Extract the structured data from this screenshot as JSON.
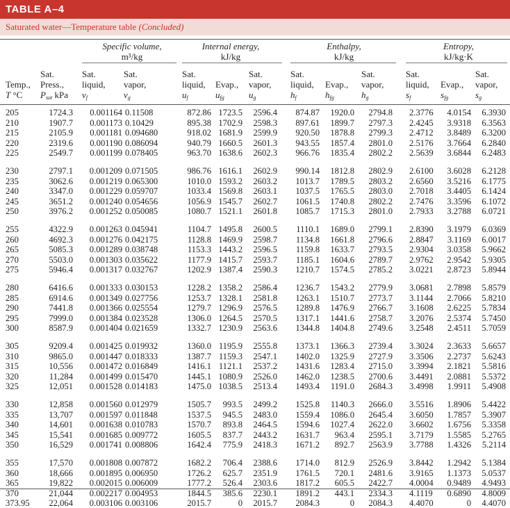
{
  "title": "TABLE A–4",
  "caption": {
    "text": "Saturated water—Temperature table ",
    "note": "(Concluded)"
  },
  "groups": [
    {
      "name": "Specific volume,",
      "unit": "m³/kg"
    },
    {
      "name": "Internal energy,",
      "unit": "kJ/kg"
    },
    {
      "name": "Enthalpy,",
      "unit": "kJ/kg"
    },
    {
      "name": "Entropy,",
      "unit": "kJ/kg·K"
    }
  ],
  "columns": [
    {
      "l1": "",
      "l2": "Temp.,",
      "l3": "T °C",
      "sym": ""
    },
    {
      "l1": "Sat.",
      "l2": "Press.,",
      "l3": "P",
      "sym": ""
    },
    {
      "l1": "Sat.",
      "l2": "liquid,",
      "l3": "",
      "sym": "v_f"
    },
    {
      "l1": "Sat.",
      "l2": "vapor,",
      "l3": "",
      "sym": "v_g"
    },
    {
      "l1": "Sat.",
      "l2": "liquid,",
      "l3": "",
      "sym": "u_f"
    },
    {
      "l1": "",
      "l2": "Evap.,",
      "l3": "",
      "sym": "u_fg"
    },
    {
      "l1": "Sat.",
      "l2": "vapor,",
      "l3": "",
      "sym": "u_g"
    },
    {
      "l1": "Sat.",
      "l2": "liquid,",
      "l3": "",
      "sym": "h_f"
    },
    {
      "l1": "",
      "l2": "Evap.,",
      "l3": "",
      "sym": "h_fg"
    },
    {
      "l1": "Sat.",
      "l2": "vapor,",
      "l3": "",
      "sym": "h_g"
    },
    {
      "l1": "Sat.",
      "l2": "liquid,",
      "l3": "",
      "sym": "s_f"
    },
    {
      "l1": "",
      "l2": "Evap.,",
      "l3": "",
      "sym": "s_fg"
    },
    {
      "l1": "Sat.",
      "l2": "vapor,",
      "l3": "",
      "sym": "s_g"
    }
  ],
  "press_sub": "sat",
  "press_unit": " kPa",
  "rows": [
    [
      "205",
      "1724.3",
      "0.001164",
      "0.11508",
      "872.86",
      "1723.5",
      "2596.4",
      "874.87",
      "1920.0",
      "2794.8",
      "2.3776",
      "4.0154",
      "6.3930"
    ],
    [
      "210",
      "1907.7",
      "0.001173",
      "0.10429",
      "895.38",
      "1702.9",
      "2598.3",
      "897.61",
      "1899.7",
      "2797.3",
      "2.4245",
      "3.9318",
      "6.3563"
    ],
    [
      "215",
      "2105.9",
      "0.001181",
      "0.094680",
      "918.02",
      "1681.9",
      "2599.9",
      "920.50",
      "1878.8",
      "2799.3",
      "2.4712",
      "3.8489",
      "6.3200"
    ],
    [
      "220",
      "2319.6",
      "0.001190",
      "0.086094",
      "940.79",
      "1660.5",
      "2601.3",
      "943.55",
      "1857.4",
      "2801.0",
      "2.5176",
      "3.7664",
      "6.2840"
    ],
    [
      "225",
      "2549.7",
      "0.001199",
      "0.078405",
      "963.70",
      "1638.6",
      "2602.3",
      "966.76",
      "1835.4",
      "2802.2",
      "2.5639",
      "3.6844",
      "6.2483"
    ],
    [
      "230",
      "2797.1",
      "0.001209",
      "0.071505",
      "986.76",
      "1616.1",
      "2602.9",
      "990.14",
      "1812.8",
      "2802.9",
      "2.6100",
      "3.6028",
      "6.2128"
    ],
    [
      "235",
      "3062.6",
      "0.001219",
      "0.065300",
      "1010.0",
      "1593.2",
      "2603.2",
      "1013.7",
      "1789.5",
      "2803.2",
      "2.6560",
      "3.5216",
      "6.1775"
    ],
    [
      "240",
      "3347.0",
      "0.001229",
      "0.059707",
      "1033.4",
      "1569.8",
      "2603.1",
      "1037.5",
      "1765.5",
      "2803.0",
      "2.7018",
      "3.4405",
      "6.1424"
    ],
    [
      "245",
      "3651.2",
      "0.001240",
      "0.054656",
      "1056.9",
      "1545.7",
      "2602.7",
      "1061.5",
      "1740.8",
      "2802.2",
      "2.7476",
      "3.3596",
      "6.1072"
    ],
    [
      "250",
      "3976.2",
      "0.001252",
      "0.050085",
      "1080.7",
      "1521.1",
      "2601.8",
      "1085.7",
      "1715.3",
      "2801.0",
      "2.7933",
      "3.2788",
      "6.0721"
    ],
    [
      "255",
      "4322.9",
      "0.001263",
      "0.045941",
      "1104.7",
      "1495.8",
      "2600.5",
      "1110.1",
      "1689.0",
      "2799.1",
      "2.8390",
      "3.1979",
      "6.0369"
    ],
    [
      "260",
      "4692.3",
      "0.001276",
      "0.042175",
      "1128.8",
      "1469.9",
      "2598.7",
      "1134.8",
      "1661.8",
      "2796.6",
      "2.8847",
      "3.1169",
      "6.0017"
    ],
    [
      "265",
      "5085.3",
      "0.001289",
      "0.038748",
      "1153.3",
      "1443.2",
      "2596.5",
      "1159.8",
      "1633.7",
      "2793.5",
      "2.9304",
      "3.0358",
      "5.9662"
    ],
    [
      "270",
      "5503.0",
      "0.001303",
      "0.035622",
      "1177.9",
      "1415.7",
      "2593.7",
      "1185.1",
      "1604.6",
      "2789.7",
      "2.9762",
      "2.9542",
      "5.9305"
    ],
    [
      "275",
      "5946.4",
      "0.001317",
      "0.032767",
      "1202.9",
      "1387.4",
      "2590.3",
      "1210.7",
      "1574.5",
      "2785.2",
      "3.0221",
      "2.8723",
      "5.8944"
    ],
    [
      "280",
      "6416.6",
      "0.001333",
      "0.030153",
      "1228.2",
      "1358.2",
      "2586.4",
      "1236.7",
      "1543.2",
      "2779.9",
      "3.0681",
      "2.7898",
      "5.8579"
    ],
    [
      "285",
      "6914.6",
      "0.001349",
      "0.027756",
      "1253.7",
      "1328.1",
      "2581.8",
      "1263.1",
      "1510.7",
      "2773.7",
      "3.1144",
      "2.7066",
      "5.8210"
    ],
    [
      "290",
      "7441.8",
      "0.001366",
      "0.025554",
      "1279.7",
      "1296.9",
      "2576.5",
      "1289.8",
      "1476.9",
      "2766.7",
      "3.1608",
      "2.6225",
      "5.7834"
    ],
    [
      "295",
      "7999.0",
      "0.001384",
      "0.023528",
      "1306.0",
      "1264.5",
      "2570.5",
      "1317.1",
      "1441.6",
      "2758.7",
      "3.2076",
      "2.5374",
      "5.7450"
    ],
    [
      "300",
      "8587.9",
      "0.001404",
      "0.021659",
      "1332.7",
      "1230.9",
      "2563.6",
      "1344.8",
      "1404.8",
      "2749.6",
      "3.2548",
      "2.4511",
      "5.7059"
    ],
    [
      "305",
      "9209.4",
      "0.001425",
      "0.019932",
      "1360.0",
      "1195.9",
      "2555.8",
      "1373.1",
      "1366.3",
      "2739.4",
      "3.3024",
      "2.3633",
      "5.6657"
    ],
    [
      "310",
      "9865.0",
      "0.001447",
      "0.018333",
      "1387.7",
      "1159.3",
      "2547.1",
      "1402.0",
      "1325.9",
      "2727.9",
      "3.3506",
      "2.2737",
      "5.6243"
    ],
    [
      "315",
      "10,556",
      "0.001472",
      "0.016849",
      "1416.1",
      "1121.1",
      "2537.2",
      "1431.6",
      "1283.4",
      "2715.0",
      "3.3994",
      "2.1821",
      "5.5816"
    ],
    [
      "320",
      "11,284",
      "0.001499",
      "0.015470",
      "1445.1",
      "1080.9",
      "2526.0",
      "1462.0",
      "1238.5",
      "2700.6",
      "3.4491",
      "2.0881",
      "5.5372"
    ],
    [
      "325",
      "12,051",
      "0.001528",
      "0.014183",
      "1475.0",
      "1038.5",
      "2513.4",
      "1493.4",
      "1191.0",
      "2684.3",
      "3.4998",
      "1.9911",
      "5.4908"
    ],
    [
      "330",
      "12,858",
      "0.001560",
      "0.012979",
      "1505.7",
      "993.5",
      "2499.2",
      "1525.8",
      "1140.3",
      "2666.0",
      "3.5516",
      "1.8906",
      "5.4422"
    ],
    [
      "335",
      "13,707",
      "0.001597",
      "0.011848",
      "1537.5",
      "945.5",
      "2483.0",
      "1559.4",
      "1086.0",
      "2645.4",
      "3.6050",
      "1.7857",
      "5.3907"
    ],
    [
      "340",
      "14,601",
      "0.001638",
      "0.010783",
      "1570.7",
      "893.8",
      "2464.5",
      "1594.6",
      "1027.4",
      "2622.0",
      "3.6602",
      "1.6756",
      "5.3358"
    ],
    [
      "345",
      "15,541",
      "0.001685",
      "0.009772",
      "1605.5",
      "837.7",
      "2443.2",
      "1631.7",
      "963.4",
      "2595.1",
      "3.7179",
      "1.5585",
      "5.2765"
    ],
    [
      "350",
      "16,529",
      "0.001741",
      "0.008806",
      "1642.4",
      "775.9",
      "2418.3",
      "1671.2",
      "892.7",
      "2563.9",
      "3.7788",
      "1.4326",
      "5.2114"
    ],
    [
      "355",
      "17,570",
      "0.001808",
      "0.007872",
      "1682.2",
      "706.4",
      "2388.6",
      "1714.0",
      "812.9",
      "2526.9",
      "3.8442",
      "1.2942",
      "5.1384"
    ],
    [
      "360",
      "18,666",
      "0.001895",
      "0.006950",
      "1726.2",
      "625.7",
      "2351.9",
      "1761.5",
      "720.1",
      "2481.6",
      "3.9165",
      "1.1373",
      "5.0537"
    ],
    [
      "365",
      "19,822",
      "0.002015",
      "0.006009",
      "1777.2",
      "526.4",
      "2303.6",
      "1817.2",
      "605.5",
      "2422.7",
      "4.0004",
      "0.9489",
      "4.9493"
    ],
    [
      "370",
      "21,044",
      "0.002217",
      "0.004953",
      "1844.5",
      "385.6",
      "2230.1",
      "1891.2",
      "443.1",
      "2334.3",
      "4.1119",
      "0.6890",
      "4.8009"
    ],
    [
      "373.95",
      "22,064",
      "0.003106",
      "0.003106",
      "2015.7",
      "0",
      "2015.7",
      "2084.3",
      "0",
      "2084.3",
      "4.4070",
      "0",
      "4.4070"
    ]
  ]
}
